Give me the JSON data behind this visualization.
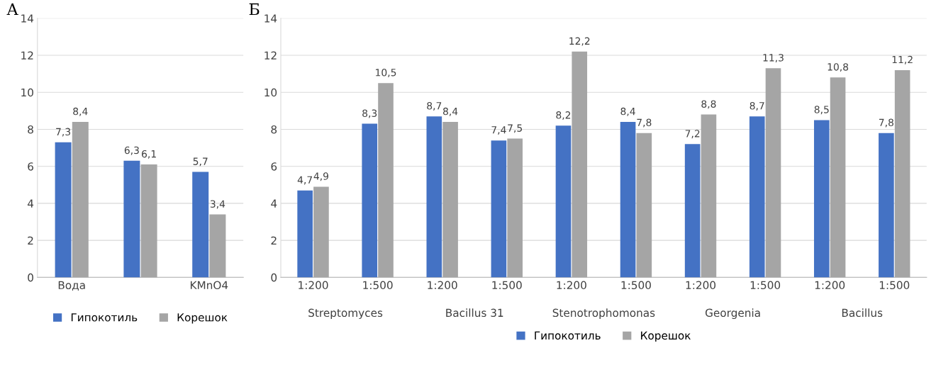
{
  "chart_data": [
    {
      "type": "bar",
      "title": "А",
      "categories": [
        "Вода",
        null,
        "KMnO4"
      ],
      "series": [
        {
          "name": "Гипокотиль",
          "color": "#4472c4",
          "values": [
            7.3,
            6.3,
            5.7
          ],
          "value_labels": [
            "7,3",
            "6,3",
            "5,7"
          ]
        },
        {
          "name": "Корешок",
          "color": "#a5a5a5",
          "values": [
            8.4,
            6.1,
            3.4
          ],
          "value_labels": [
            "8,4",
            "6,1",
            "3,4"
          ]
        }
      ],
      "ylim": [
        0,
        14
      ],
      "yticks": [
        0,
        2,
        4,
        6,
        8,
        10,
        12,
        14
      ],
      "grid": "y",
      "legend": "bottom"
    },
    {
      "type": "bar",
      "title": "Б",
      "categories": [
        "1:200",
        "1:500",
        "1:200",
        "1:500",
        "1:200",
        "1:500",
        "1:200",
        "1:500",
        "1:200",
        "1:500"
      ],
      "annotations": [
        "Streptomyces",
        "Bacillus 31",
        "Stenotrophomonas",
        "Georgenia",
        "Bacillus"
      ],
      "series": [
        {
          "name": "Гипокотиль",
          "color": "#4472c4",
          "values": [
            4.7,
            8.3,
            8.7,
            7.4,
            8.2,
            8.4,
            7.2,
            8.7,
            8.5,
            7.8
          ],
          "value_labels": [
            "4,7",
            "8,3",
            "8,7",
            "7,4",
            "8,2",
            "8,4",
            "7,2",
            "8,7",
            "8,5",
            "7,8"
          ]
        },
        {
          "name": "Корешок",
          "color": "#a5a5a5",
          "values": [
            4.9,
            10.5,
            8.4,
            7.5,
            12.2,
            7.8,
            8.8,
            11.3,
            10.8,
            11.2
          ],
          "value_labels": [
            "4,9",
            "10,5",
            "8,4",
            "7,5",
            "12,2",
            "7,8",
            "8,8",
            "11,3",
            "10,8",
            "11,2"
          ]
        }
      ],
      "ylim": [
        0,
        14
      ],
      "yticks": [
        0,
        2,
        4,
        6,
        8,
        10,
        12,
        14
      ],
      "grid": "y",
      "legend": "bottom"
    }
  ]
}
